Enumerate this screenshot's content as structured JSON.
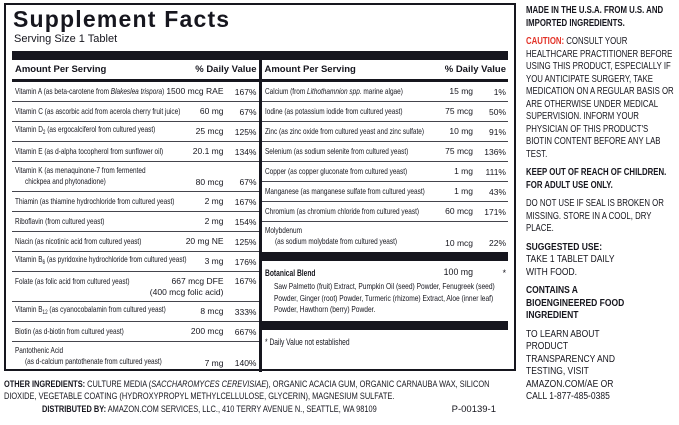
{
  "colors": {
    "ink": "#16161e",
    "caution_red": "#e23227",
    "bar": "#16161e"
  },
  "panel": {
    "title": "Supplement Facts",
    "serving": "Serving Size 1 Tablet"
  },
  "headers": {
    "amount": "Amount Per Serving",
    "dv": "% Daily Value"
  },
  "rows_left": [
    {
      "name": [
        [
          "Vitamin A (as beta-carotene from ",
          ""
        ],
        [
          "Blakeslea trispora",
          "i"
        ],
        [
          ")",
          ""
        ]
      ],
      "amount": "1500 mcg RAE",
      "dv": "167%"
    },
    {
      "name": [
        [
          "Vitamin C (as ascorbic acid from acerola cherry fruit juice)",
          ""
        ]
      ],
      "amount": "60 mg",
      "dv": "67%"
    },
    {
      "name": [
        [
          "Vitamin D",
          ""
        ],
        [
          "2",
          "sub"
        ],
        [
          " (as ergocalciferol from cultured yeast)",
          ""
        ]
      ],
      "amount": "25 mcg",
      "dv": "125%"
    },
    {
      "name": [
        [
          "Vitamin E (as d-alpha tocopherol from sunflower oil)",
          ""
        ]
      ],
      "amount": "20.1 mg",
      "dv": "134%"
    },
    {
      "name": [
        [
          "Vitamin K (as menaquinone-7 from fermented",
          ""
        ]
      ],
      "name2": "chickpea and phytonadione)",
      "valign": "bottom",
      "amount": "80 mcg",
      "dv": "67%"
    },
    {
      "name": [
        [
          "Thiamin (as thiamine hydrochloride from cultured yeast)",
          ""
        ]
      ],
      "amount": "2 mg",
      "dv": "167%"
    },
    {
      "name": [
        [
          "Riboflavin (from cultured yeast)",
          ""
        ]
      ],
      "amount": "2 mg",
      "dv": "154%"
    },
    {
      "name": [
        [
          "Niacin (as nicotinic acid from cultured yeast)",
          ""
        ]
      ],
      "amount": "20 mg NE",
      "dv": "125%"
    },
    {
      "name": [
        [
          "Vitamin B",
          ""
        ],
        [
          "6",
          "sub"
        ],
        [
          " (as pyridoxine hydrochloride from cultured yeast)",
          ""
        ]
      ],
      "amount": "3 mg",
      "dv": "176%"
    },
    {
      "name": [
        [
          "Folate (as folic acid from cultured yeast)",
          ""
        ]
      ],
      "amount": "667 mcg DFE",
      "amount2": "(400 mcg folic acid)",
      "dv": "167%"
    },
    {
      "name": [
        [
          "Vitamin B",
          ""
        ],
        [
          "12",
          "sub"
        ],
        [
          " (as cyanocobalamin from cultured yeast)",
          ""
        ]
      ],
      "amount": "8 mcg",
      "dv": "333%"
    },
    {
      "name": [
        [
          "Biotin (as d-biotin from cultured yeast)",
          ""
        ]
      ],
      "amount": "200 mcg",
      "dv": "667%"
    },
    {
      "name": [
        [
          "Pantothenic Acid",
          ""
        ]
      ],
      "name2": "(as d-calcium pantothenate from cultured yeast)",
      "valign": "bottom",
      "amount": "7 mg",
      "dv": "140%"
    }
  ],
  "rows_right": [
    {
      "name": [
        [
          "Calcium (from ",
          ""
        ],
        [
          "Lithothamnion spp.",
          "i"
        ],
        [
          " marine algae)",
          ""
        ]
      ],
      "amount": "15 mg",
      "dv": "1%"
    },
    {
      "name": [
        [
          "Iodine (as potassium iodide from cultured yeast)",
          ""
        ]
      ],
      "amount": "75 mcg",
      "dv": "50%"
    },
    {
      "name": [
        [
          "Zinc (as zinc oxide from cultured yeast and zinc sulfate)",
          ""
        ]
      ],
      "amount": "10 mg",
      "dv": "91%"
    },
    {
      "name": [
        [
          "Selenium (as sodium selenite from cultured yeast)",
          ""
        ]
      ],
      "amount": "75 mcg",
      "dv": "136%"
    },
    {
      "name": [
        [
          "Copper (as copper gluconate from cultured yeast)",
          ""
        ]
      ],
      "amount": "1 mg",
      "dv": "111%"
    },
    {
      "name": [
        [
          "Manganese (as manganese sulfate from cultured yeast)",
          ""
        ]
      ],
      "amount": "1 mg",
      "dv": "43%"
    },
    {
      "name": [
        [
          "Chromium (as chromium chloride from cultured yeast)",
          ""
        ]
      ],
      "amount": "60 mcg",
      "dv": "171%"
    },
    {
      "name": [
        [
          "Molybdenum",
          ""
        ]
      ],
      "name2": "(as sodium molybdate from cultured yeast)",
      "valign": "bottom",
      "amount": "10 mcg",
      "dv": "22%"
    }
  ],
  "botanical": {
    "title": "Botanical Blend",
    "amount": "100 mg",
    "dv": "*",
    "description": "Saw Palmetto (fruit) Extract, Pumpkin Oil (seed) Powder, Fenugreek (seed) Powder, Ginger (root) Powder, Turmeric (rhizome) Extract, Aloe (inner leaf) Powder, Hawthorn (berry) Powder."
  },
  "footnote": "* Daily Value not established",
  "footer": {
    "other_lead": "OTHER INGREDIENTS:",
    "other_body": [
      [
        " CULTURE MEDIA (",
        ""
      ],
      [
        "SACCHAROMYCES CEREVISIAE",
        "i"
      ],
      [
        "), ORGANIC ACACIA GUM, ORGANIC CARNAUBA WAX, SILICON DIOXIDE, VEGETABLE COATING (HYDROXYPROPYL METHYLCELLULOSE, GLYCERIN), MAGNESIUM SULFATE.",
        ""
      ]
    ],
    "dist_lead": "DISTRIBUTED BY:",
    "dist_body": " AMAZON.COM SERVICES, LLC., 410 TERRY AVENUE N., SEATTLE, WA 98109",
    "code": "P-00139-1"
  },
  "sidebar": {
    "blocks": [
      {
        "text": "MADE IN THE U.S.A. FROM U.S. AND IMPORTED INGREDIENTS."
      },
      {
        "lead": "CAUTION:",
        "text": " CONSULT YOUR HEALTHCARE PRACTITIONER BEFORE USING THIS PRODUCT, ESPECIALLY IF YOU ANTICIPATE SURGERY, TAKE MEDICATION ON A REGULAR BASIS OR ARE OTHERWISE UNDER MEDICAL SUPERVISION. INFORM YOUR PHYSICIAN OF THIS PRODUCT'S BIOTIN CONTENT BEFORE ANY LAB TEST."
      },
      {
        "text": "KEEP OUT OF REACH OF CHILDREN. FOR ADULT USE ONLY."
      },
      {
        "text": "DO NOT USE IF SEAL IS BROKEN OR MISSING. STORE IN A COOL, DRY PLACE."
      },
      {
        "lead": "SUGGESTED USE:",
        "text": "TAKE 1 TABLET DAILY WITH FOOD."
      },
      {
        "text": "CONTAINS A BIOENGINEERED FOOD INGREDIENT"
      },
      {
        "text": "TO LEARN ABOUT PRODUCT TRANSPARENCY AND TESTING, VISIT AMAZON.COM/AE OR CALL 1-877-485-0385"
      }
    ]
  }
}
